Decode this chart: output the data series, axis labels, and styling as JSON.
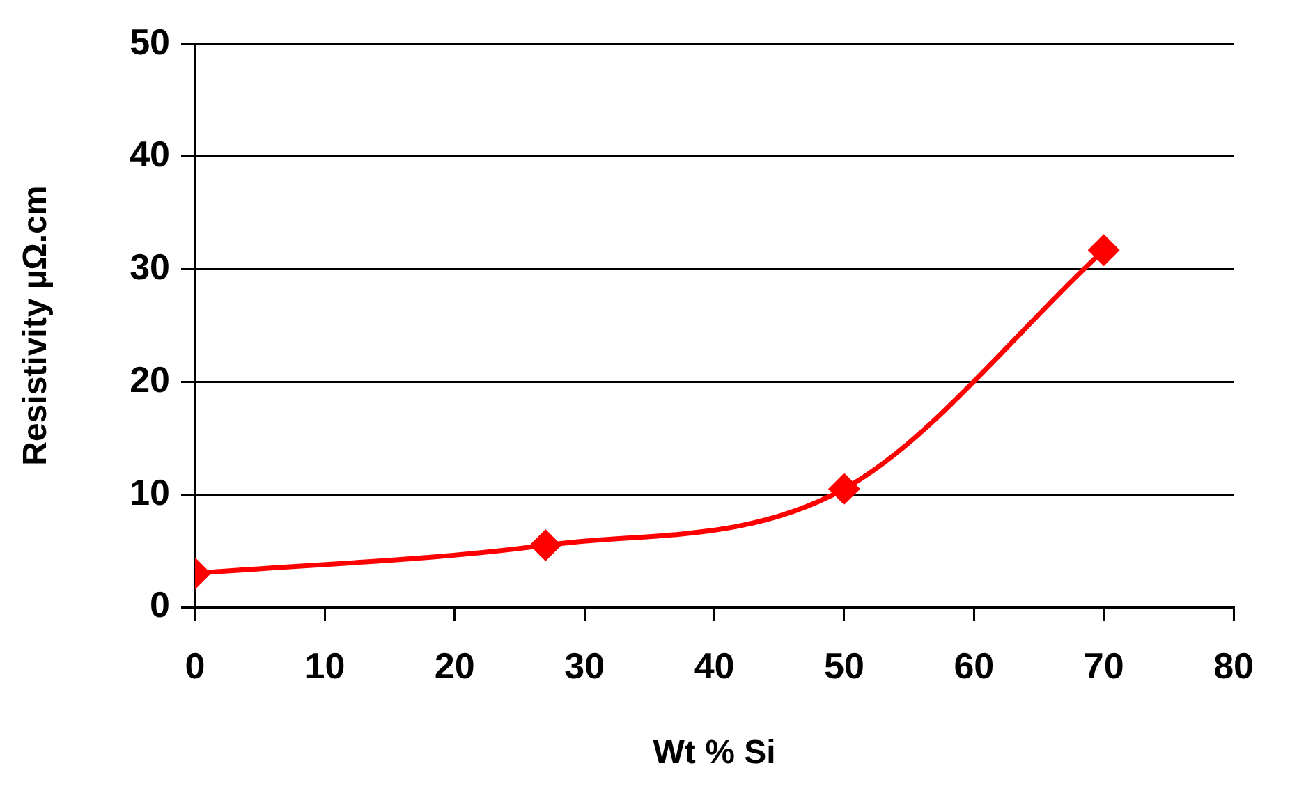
{
  "chart_data": {
    "type": "line",
    "xlabel": "Wt % Si",
    "ylabel": "Resistivity µΩ.cm",
    "x": [
      0,
      27,
      50,
      70
    ],
    "series": [
      {
        "color": "#ff0000",
        "values": [
          3.0,
          5.5,
          10.5,
          31.7
        ]
      }
    ],
    "xlim": [
      0,
      80
    ],
    "xticks": [
      0,
      10,
      20,
      30,
      40,
      50,
      60,
      70,
      80
    ],
    "ylim": [
      0,
      50
    ],
    "yticks": [
      0,
      10,
      20,
      30,
      40,
      50
    ],
    "grid": "y",
    "legend": false,
    "marker": "diamond",
    "line_style": "solid"
  }
}
